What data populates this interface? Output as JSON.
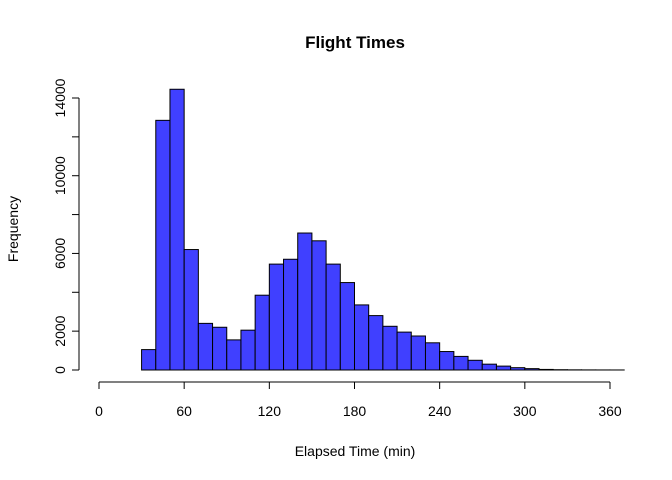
{
  "chart_data": {
    "type": "bar",
    "title": "Flight Times",
    "xlabel": "Elapsed Time (min)",
    "ylabel": "Frequency",
    "bar_color": "#4040FF",
    "bar_border": "#000000",
    "bin_width": 10,
    "bins": [
      {
        "start": 20,
        "value": 0
      },
      {
        "start": 30,
        "value": 1050
      },
      {
        "start": 40,
        "value": 12850
      },
      {
        "start": 50,
        "value": 14450
      },
      {
        "start": 60,
        "value": 6200
      },
      {
        "start": 70,
        "value": 2400
      },
      {
        "start": 80,
        "value": 2200
      },
      {
        "start": 90,
        "value": 1550
      },
      {
        "start": 100,
        "value": 2050
      },
      {
        "start": 110,
        "value": 3850
      },
      {
        "start": 120,
        "value": 5450
      },
      {
        "start": 130,
        "value": 5700
      },
      {
        "start": 140,
        "value": 7050
      },
      {
        "start": 150,
        "value": 6650
      },
      {
        "start": 160,
        "value": 5450
      },
      {
        "start": 170,
        "value": 4500
      },
      {
        "start": 180,
        "value": 3350
      },
      {
        "start": 190,
        "value": 2800
      },
      {
        "start": 200,
        "value": 2250
      },
      {
        "start": 210,
        "value": 1950
      },
      {
        "start": 220,
        "value": 1750
      },
      {
        "start": 230,
        "value": 1400
      },
      {
        "start": 240,
        "value": 950
      },
      {
        "start": 250,
        "value": 700
      },
      {
        "start": 260,
        "value": 500
      },
      {
        "start": 270,
        "value": 300
      },
      {
        "start": 280,
        "value": 200
      },
      {
        "start": 290,
        "value": 120
      },
      {
        "start": 300,
        "value": 70
      },
      {
        "start": 310,
        "value": 30
      },
      {
        "start": 320,
        "value": 15
      },
      {
        "start": 330,
        "value": 8
      },
      {
        "start": 340,
        "value": 5
      },
      {
        "start": 350,
        "value": 3
      },
      {
        "start": 360,
        "value": 2
      }
    ],
    "xlim": [
      0,
      360
    ],
    "ylim": [
      0,
      14000
    ],
    "x_ticks": [
      0,
      60,
      120,
      180,
      240,
      300,
      360
    ],
    "y_ticks": [
      0,
      2000,
      6000,
      10000,
      14000
    ],
    "grid": false,
    "legend": "none"
  }
}
